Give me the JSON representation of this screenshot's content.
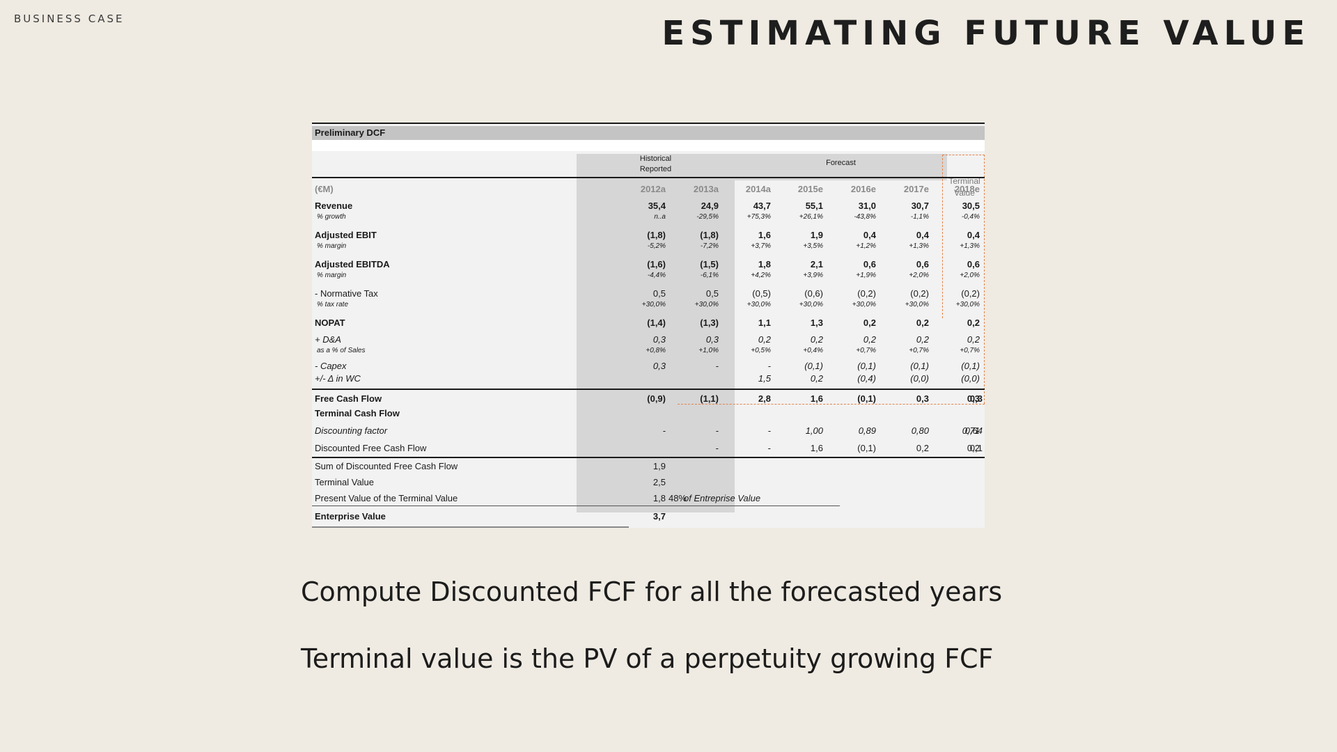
{
  "kicker": "BUSINESS CASE",
  "title": "ESTIMATING FUTURE VALUE",
  "table": {
    "name": "Preliminary DCF",
    "hist_header": [
      "Historical",
      "Reported"
    ],
    "forecast_header": "Forecast",
    "tv_header": [
      "Terminal",
      "Value"
    ],
    "unit": "(€M)",
    "years": [
      "2012a",
      "2013a",
      "2014a",
      "2015e",
      "2016e",
      "2017e",
      "2018e"
    ],
    "rows": [
      {
        "label": "Revenue",
        "v": [
          "35,4",
          "24,9",
          "43,7",
          "55,1",
          "31,0",
          "30,7",
          "30,5",
          ""
        ]
      },
      {
        "label": "% growth",
        "v": [
          "n..a",
          "-29,5%",
          "+75,3%",
          "+26,1%",
          "-43,8%",
          "-1,1%",
          "-0,4%",
          ""
        ]
      },
      {
        "label": "Adjusted EBIT",
        "v": [
          "(1,8)",
          "(1,8)",
          "1,6",
          "1,9",
          "0,4",
          "0,4",
          "0,4",
          ""
        ]
      },
      {
        "label": "% margin",
        "v": [
          "-5,2%",
          "-7,2%",
          "+3,7%",
          "+3,5%",
          "+1,2%",
          "+1,3%",
          "+1,3%",
          ""
        ]
      },
      {
        "label": "Adjusted EBITDA",
        "v": [
          "(1,6)",
          "(1,5)",
          "1,8",
          "2,1",
          "0,6",
          "0,6",
          "0,6",
          ""
        ]
      },
      {
        "label": "% margin",
        "v": [
          "-4,4%",
          "-6,1%",
          "+4,2%",
          "+3,9%",
          "+1,9%",
          "+2,0%",
          "+2,0%",
          ""
        ]
      },
      {
        "label": "- Normative Tax",
        "v": [
          "0,5",
          "0,5",
          "(0,5)",
          "(0,6)",
          "(0,2)",
          "(0,2)",
          "(0,2)",
          ""
        ]
      },
      {
        "label": "% tax rate",
        "v": [
          "+30,0%",
          "+30,0%",
          "+30,0%",
          "+30,0%",
          "+30,0%",
          "+30,0%",
          "+30,0%",
          ""
        ]
      },
      {
        "label": "NOPAT",
        "v": [
          "(1,4)",
          "(1,3)",
          "1,1",
          "1,3",
          "0,2",
          "0,2",
          "0,2",
          ""
        ]
      },
      {
        "label": "+ D&A",
        "v": [
          "0,3",
          "0,3",
          "0,2",
          "0,2",
          "0,2",
          "0,2",
          "0,2",
          ""
        ]
      },
      {
        "label": "as a % of Sales",
        "v": [
          "+0,8%",
          "+1,0%",
          "+0,5%",
          "+0,4%",
          "+0,7%",
          "+0,7%",
          "+0,7%",
          ""
        ]
      },
      {
        "label": "- Capex",
        "v": [
          "0,3",
          "-",
          "-",
          "(0,1)",
          "(0,1)",
          "(0,1)",
          "(0,1)",
          ""
        ]
      },
      {
        "label": "+/- Δ in WC",
        "v": [
          "",
          "",
          "1,5",
          "0,2",
          "(0,4)",
          "(0,0)",
          "(0,0)",
          ""
        ]
      },
      {
        "label": "Free Cash Flow",
        "v": [
          "(0,9)",
          "(1,1)",
          "2,8",
          "1,6",
          "(0,1)",
          "0,3",
          "0,3",
          "0,3"
        ]
      },
      {
        "label": "Terminal Cash Flow",
        "v": [
          "",
          "",
          "",
          "",
          "",
          "",
          "",
          ""
        ]
      },
      {
        "label": "Discounting factor",
        "v": [
          "-",
          "-",
          "-",
          "1,00",
          "0,89",
          "0,80",
          "0,71",
          "0,64"
        ]
      },
      {
        "label": "Discounted Free Cash Flow",
        "v": [
          "",
          "-",
          "-",
          "1,6",
          "(0,1)",
          "0,2",
          "0,2",
          "0,1"
        ]
      }
    ],
    "summary": {
      "sum_label": "Sum of Discounted Free Cash Flow",
      "sum_value": "1,9",
      "tv_label": "Terminal Value",
      "tv_value": "2,5",
      "pv_label": "Present Value of the Terminal Value",
      "pv_value": "1,8",
      "pv_pct": "48%",
      "pv_pct_label": "of Entreprise Value",
      "ev_label": "Enterprise Value",
      "ev_value": "3,7"
    }
  },
  "bullets": [
    "Compute Discounted FCF for all the forecasted years",
    "Terminal value is the PV of a perpetuity growing FCF"
  ]
}
